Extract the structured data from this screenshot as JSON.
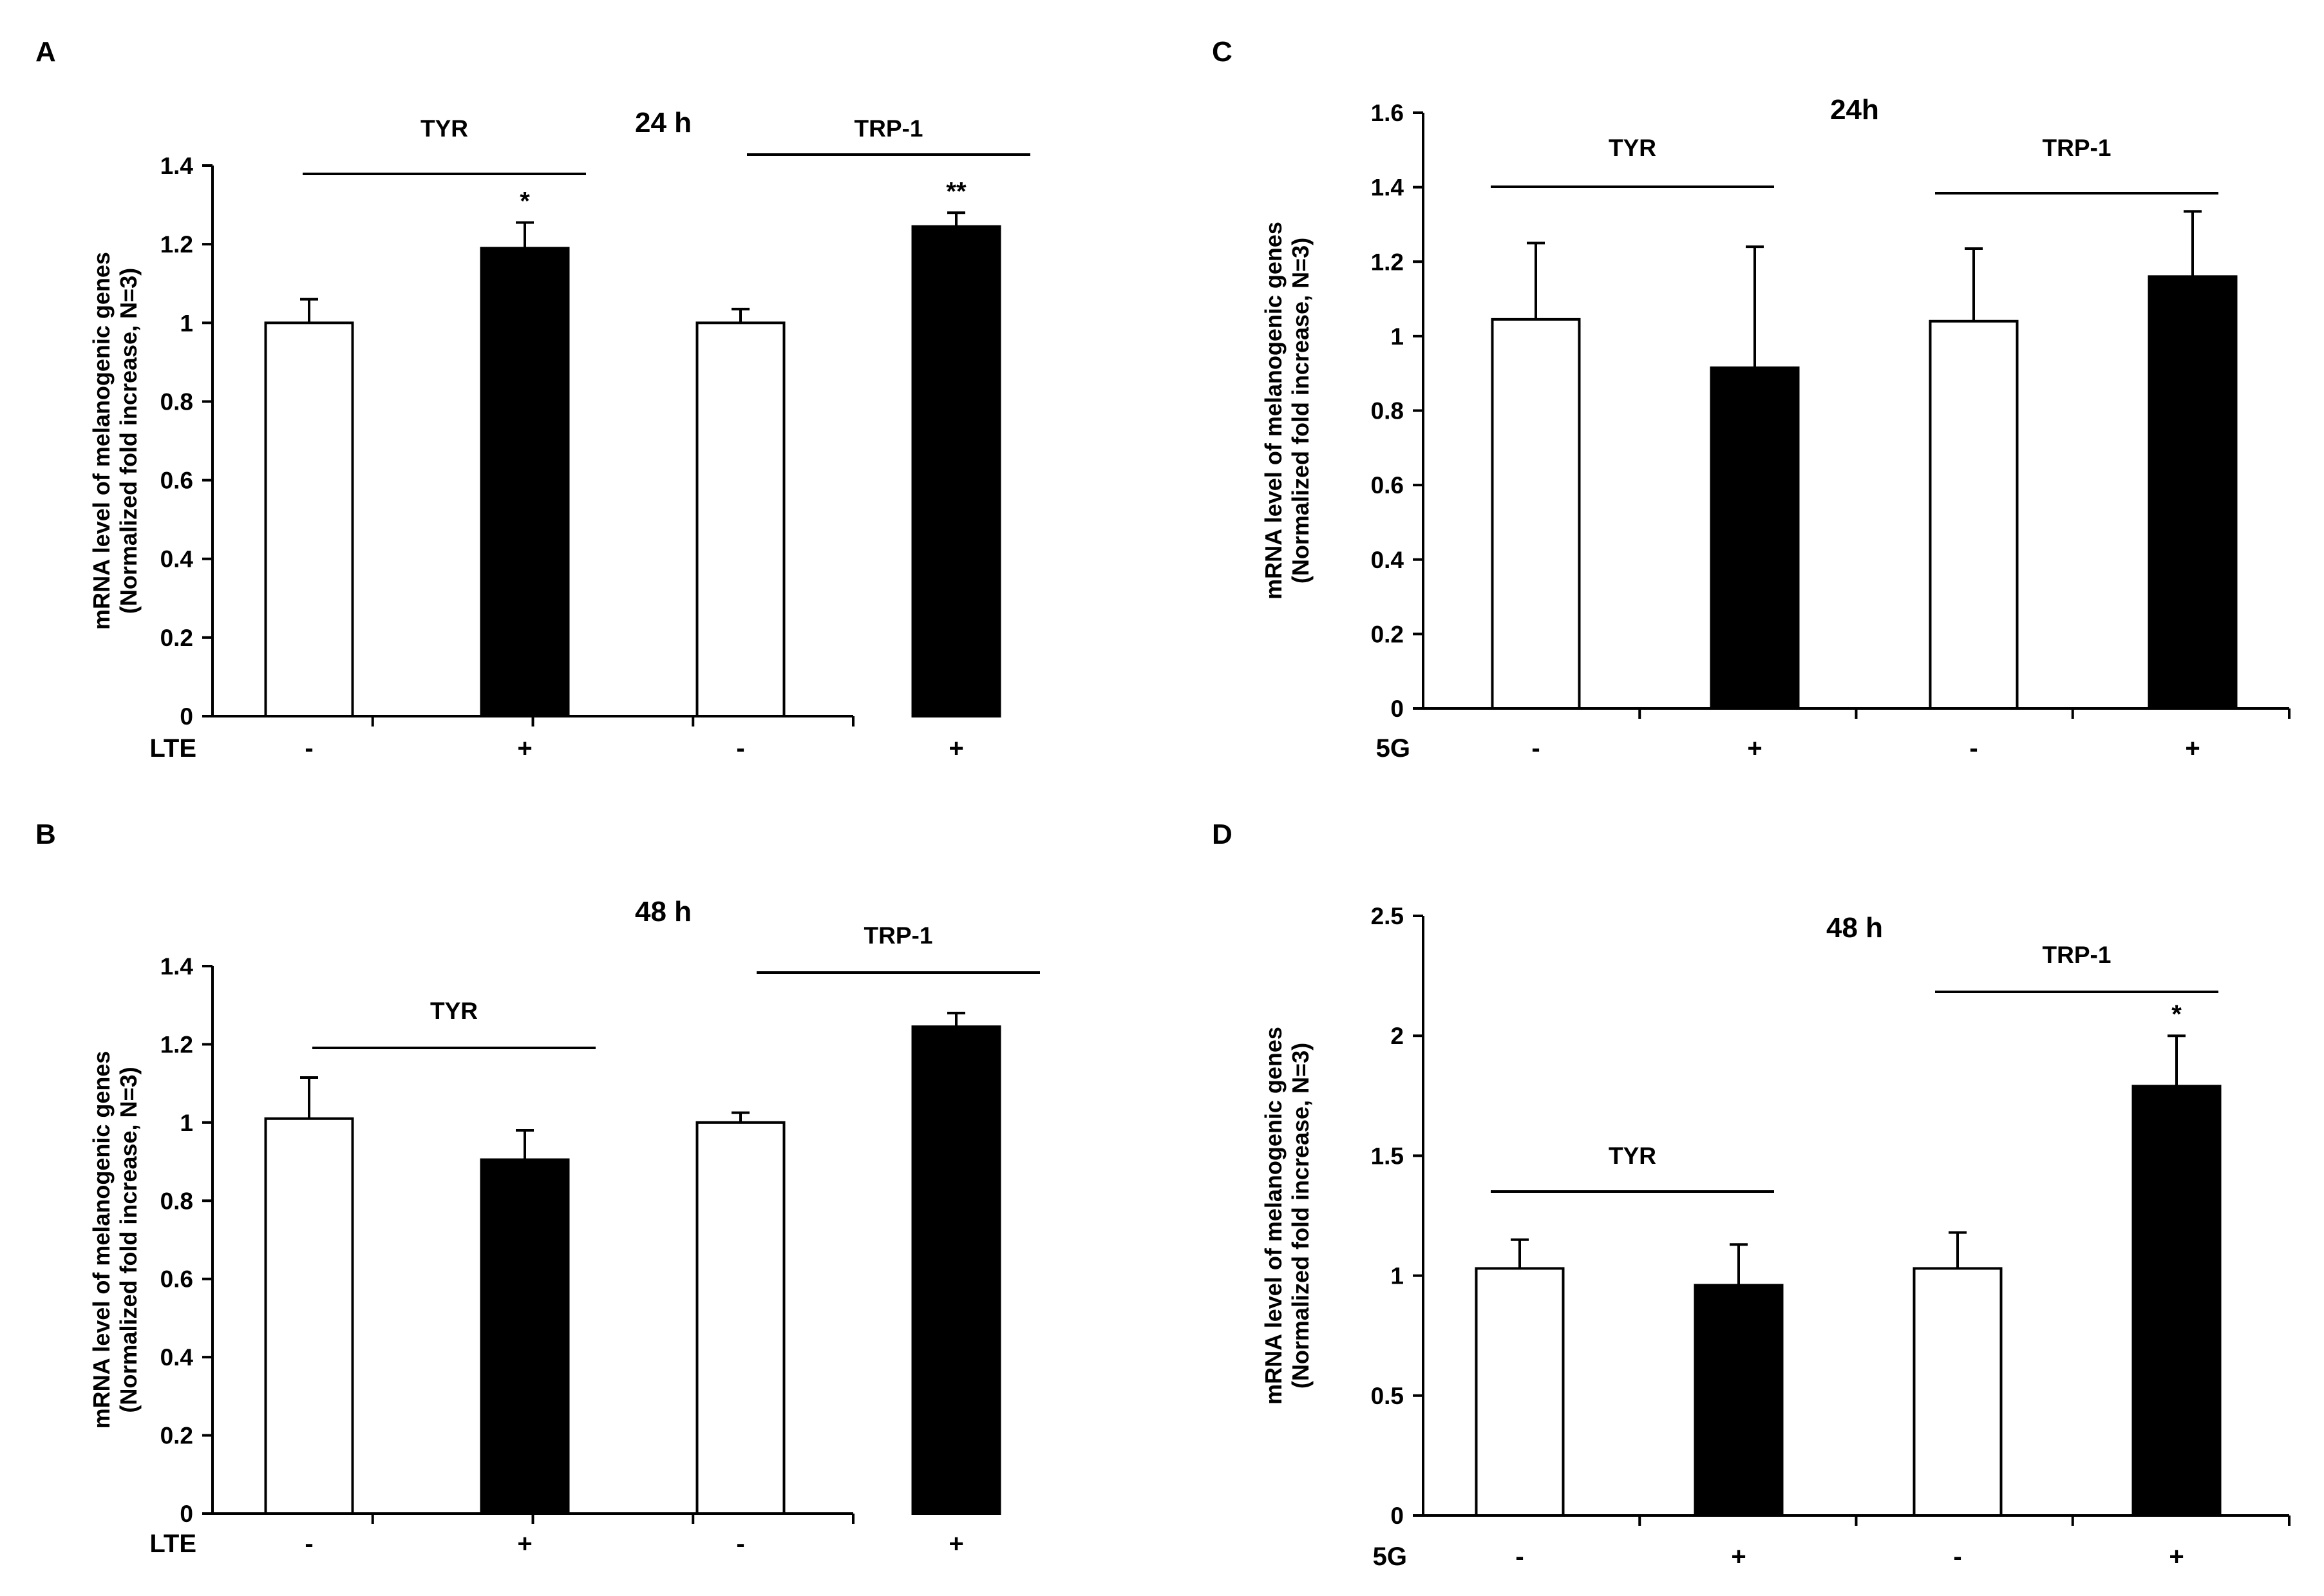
{
  "chart_data": [
    {
      "panel": "A",
      "type": "bar",
      "title": "24 h",
      "ylabel": [
        "mRNA level of melanogenic genes",
        "(Normalized fold increase, N=3)"
      ],
      "treatment_label": "LTE",
      "ylim": [
        0,
        1.4
      ],
      "yticks": [
        "0",
        "0.2",
        "0.4",
        "0.6",
        "0.8",
        "1",
        "1.2",
        "1.4"
      ],
      "groups": [
        "TYR",
        "TRP-1"
      ],
      "categories": [
        "-",
        "+",
        "-",
        "+"
      ],
      "values": [
        1.0,
        1.19,
        1.0,
        1.245
      ],
      "errors": [
        0.06,
        0.065,
        0.035,
        0.035
      ],
      "fills": [
        "#ffffff",
        "#000000",
        "#ffffff",
        "#000000"
      ],
      "significance": [
        "",
        "*",
        "",
        "**"
      ]
    },
    {
      "panel": "B",
      "type": "bar",
      "title": "48 h",
      "ylabel": [
        "mRNA level of melanogenic genes",
        "(Normalized fold increase, N=3)"
      ],
      "treatment_label": "LTE",
      "ylim": [
        0,
        1.4
      ],
      "yticks": [
        "0",
        "0.2",
        "0.4",
        "0.6",
        "0.8",
        "1",
        "1.2",
        "1.4"
      ],
      "groups": [
        "TYR",
        "TRP-1"
      ],
      "categories": [
        "-",
        "+",
        "-",
        "+"
      ],
      "values": [
        1.01,
        0.905,
        1.0,
        1.245
      ],
      "errors": [
        0.105,
        0.075,
        0.025,
        0.035
      ],
      "fills": [
        "#ffffff",
        "#000000",
        "#ffffff",
        "#000000"
      ],
      "significance": [
        "",
        "",
        "",
        ""
      ]
    },
    {
      "panel": "C",
      "type": "bar",
      "title": "24h",
      "ylabel": [
        "mRNA level of melanogenic genes",
        "(Normalized fold increase, N=3)"
      ],
      "treatment_label": "5G",
      "ylim": [
        0,
        1.6
      ],
      "yticks": [
        "0",
        "0.2",
        "0.4",
        "0.6",
        "0.8",
        "1",
        "1.2",
        "1.4",
        "1.6"
      ],
      "groups": [
        "TYR",
        "TRP-1"
      ],
      "categories": [
        "-",
        "+",
        "-",
        "+"
      ],
      "values": [
        1.045,
        0.915,
        1.04,
        1.16
      ],
      "errors": [
        0.205,
        0.325,
        0.195,
        0.175
      ],
      "fills": [
        "#ffffff",
        "#000000",
        "#ffffff",
        "#000000"
      ],
      "significance": [
        "",
        "",
        "",
        ""
      ]
    },
    {
      "panel": "D",
      "type": "bar",
      "title": "48 h",
      "ylabel": [
        "mRNA level of melanogenic genes",
        "(Normalized fold increase, N=3)"
      ],
      "treatment_label": "5G",
      "ylim": [
        0,
        2.5
      ],
      "yticks": [
        "0",
        "0.5",
        "1",
        "1.5",
        "2",
        "2.5"
      ],
      "groups": [
        "TYR",
        "TRP-1"
      ],
      "categories": [
        "-",
        "+",
        "-",
        "+"
      ],
      "values": [
        1.03,
        0.96,
        1.03,
        1.79
      ],
      "errors": [
        0.12,
        0.17,
        0.15,
        0.21
      ],
      "fills": [
        "#ffffff",
        "#000000",
        "#ffffff",
        "#000000"
      ],
      "significance": [
        "",
        "",
        "",
        "*"
      ]
    }
  ]
}
